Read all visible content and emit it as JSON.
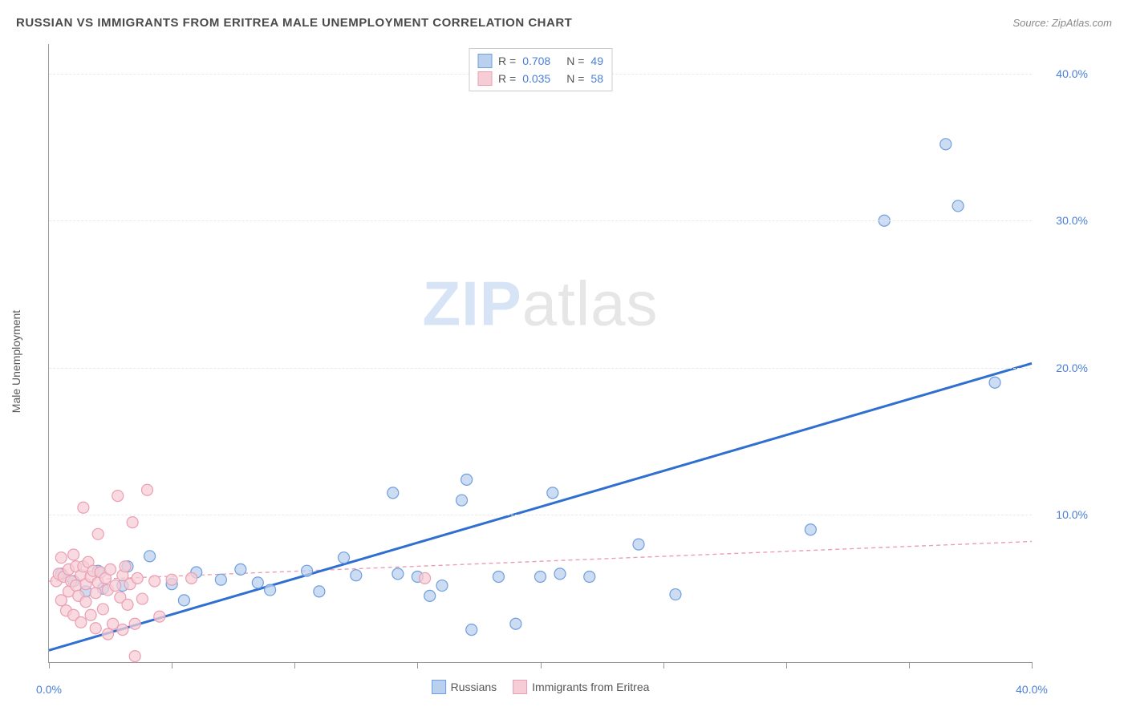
{
  "title": "RUSSIAN VS IMMIGRANTS FROM ERITREA MALE UNEMPLOYMENT CORRELATION CHART",
  "source": "Source: ZipAtlas.com",
  "y_axis_label": "Male Unemployment",
  "watermark_bold": "ZIP",
  "watermark_rest": "atlas",
  "chart": {
    "type": "scatter",
    "xlim": [
      0,
      40
    ],
    "ylim": [
      0,
      42
    ],
    "y_ticks": [
      10,
      20,
      30,
      40
    ],
    "y_tick_labels": [
      "10.0%",
      "20.0%",
      "30.0%",
      "40.0%"
    ],
    "x_ticks_minor": [
      0,
      5,
      10,
      15,
      20,
      25,
      30,
      35,
      40
    ],
    "x_tick_labels": [
      {
        "pos": 0,
        "label": "0.0%"
      },
      {
        "pos": 40,
        "label": "40.0%"
      }
    ],
    "grid_color": "#e9e9e9",
    "axis_color": "#999999",
    "background_color": "#ffffff",
    "marker_radius": 7,
    "marker_stroke_width": 1.2,
    "series": [
      {
        "name": "Russians",
        "color_fill": "#b9d0ef",
        "color_stroke": "#6f9fde",
        "r_value": "0.708",
        "n_value": "49",
        "regression": {
          "x1": 0,
          "y1": 0.8,
          "x2": 40,
          "y2": 20.3,
          "stroke": "#2f6fd0",
          "width": 3,
          "dash": "none"
        },
        "points": [
          [
            0.5,
            6
          ],
          [
            1,
            5.5
          ],
          [
            1.5,
            4.8
          ],
          [
            2,
            6.2
          ],
          [
            2.2,
            5
          ],
          [
            3,
            5.2
          ],
          [
            3.2,
            6.5
          ],
          [
            4.1,
            7.2
          ],
          [
            5,
            5.3
          ],
          [
            5.5,
            4.2
          ],
          [
            6,
            6.1
          ],
          [
            7,
            5.6
          ],
          [
            7.8,
            6.3
          ],
          [
            8.5,
            5.4
          ],
          [
            9,
            4.9
          ],
          [
            10.5,
            6.2
          ],
          [
            11,
            4.8
          ],
          [
            12,
            7.1
          ],
          [
            12.5,
            5.9
          ],
          [
            14,
            11.5
          ],
          [
            14.2,
            6
          ],
          [
            15,
            5.8
          ],
          [
            15.5,
            4.5
          ],
          [
            16,
            5.2
          ],
          [
            16.8,
            11
          ],
          [
            17,
            12.4
          ],
          [
            17.2,
            2.2
          ],
          [
            18.3,
            5.8
          ],
          [
            19,
            2.6
          ],
          [
            20,
            5.8
          ],
          [
            20.5,
            11.5
          ],
          [
            20.8,
            6
          ],
          [
            22,
            5.8
          ],
          [
            24,
            8
          ],
          [
            25.5,
            4.6
          ],
          [
            31,
            9
          ],
          [
            34,
            30
          ],
          [
            36.5,
            35.2
          ],
          [
            37,
            31
          ],
          [
            38.5,
            19
          ]
        ]
      },
      {
        "name": "Immigrants from Eritrea",
        "color_fill": "#f6cdd6",
        "color_stroke": "#ea9fb3",
        "r_value": "0.035",
        "n_value": "58",
        "regression": {
          "x1": 0,
          "y1": 5.5,
          "x2": 40,
          "y2": 8.2,
          "stroke": "#ea9fb3",
          "width": 1.4,
          "dash": "5,4"
        },
        "points": [
          [
            0.3,
            5.5
          ],
          [
            0.4,
            6
          ],
          [
            0.5,
            4.2
          ],
          [
            0.5,
            7.1
          ],
          [
            0.6,
            5.8
          ],
          [
            0.7,
            3.5
          ],
          [
            0.8,
            6.3
          ],
          [
            0.8,
            4.8
          ],
          [
            0.9,
            5.5
          ],
          [
            1,
            7.3
          ],
          [
            1,
            3.2
          ],
          [
            1.1,
            5.2
          ],
          [
            1.1,
            6.5
          ],
          [
            1.2,
            4.5
          ],
          [
            1.3,
            5.9
          ],
          [
            1.3,
            2.7
          ],
          [
            1.4,
            6.5
          ],
          [
            1.4,
            10.5
          ],
          [
            1.5,
            5.3
          ],
          [
            1.5,
            4.1
          ],
          [
            1.6,
            6.8
          ],
          [
            1.7,
            3.2
          ],
          [
            1.7,
            5.8
          ],
          [
            1.8,
            6.2
          ],
          [
            1.9,
            4.7
          ],
          [
            1.9,
            2.3
          ],
          [
            2,
            5.4
          ],
          [
            2,
            8.7
          ],
          [
            2.1,
            6.1
          ],
          [
            2.2,
            3.6
          ],
          [
            2.3,
            5.7
          ],
          [
            2.4,
            1.9
          ],
          [
            2.4,
            4.9
          ],
          [
            2.5,
            6.3
          ],
          [
            2.6,
            2.6
          ],
          [
            2.7,
            5.2
          ],
          [
            2.8,
            11.3
          ],
          [
            2.9,
            4.4
          ],
          [
            3,
            5.9
          ],
          [
            3,
            2.2
          ],
          [
            3.1,
            6.5
          ],
          [
            3.2,
            3.9
          ],
          [
            3.3,
            5.3
          ],
          [
            3.4,
            9.5
          ],
          [
            3.5,
            2.6
          ],
          [
            3.5,
            0.4
          ],
          [
            3.6,
            5.7
          ],
          [
            3.8,
            4.3
          ],
          [
            4,
            11.7
          ],
          [
            4.3,
            5.5
          ],
          [
            4.5,
            3.1
          ],
          [
            5,
            5.6
          ],
          [
            5.8,
            5.7
          ],
          [
            15.3,
            5.7
          ]
        ]
      }
    ],
    "legend_bottom": [
      {
        "label": "Russians",
        "fill": "#b9d0ef",
        "stroke": "#6f9fde"
      },
      {
        "label": "Immigrants from Eritrea",
        "fill": "#f6cdd6",
        "stroke": "#ea9fb3"
      }
    ]
  }
}
